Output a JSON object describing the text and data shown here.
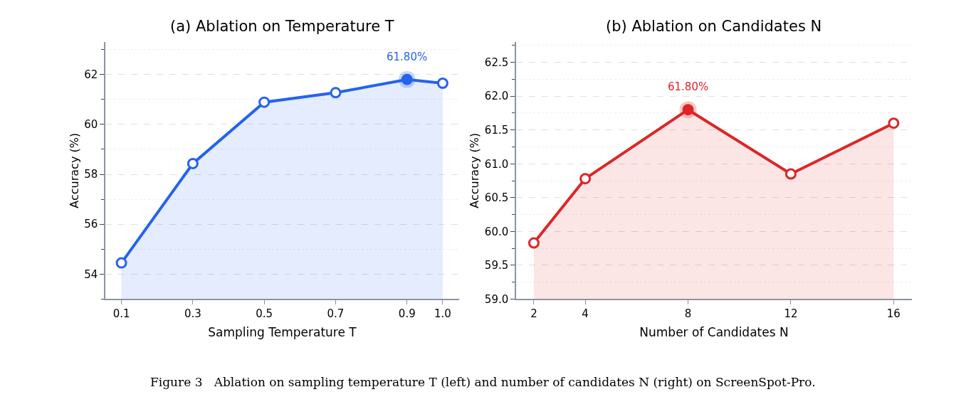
{
  "chart_data": [
    {
      "type": "area",
      "title": "(a) Ablation on Temperature T",
      "xlabel": "Sampling Temperature T",
      "ylabel": "Accuracy (%)",
      "x": [
        0.1,
        0.3,
        0.5,
        0.7,
        0.9,
        1.0
      ],
      "series": [
        {
          "color": "#2563eb",
          "values": [
            54.45,
            58.43,
            60.89,
            61.27,
            61.8,
            61.65
          ]
        }
      ],
      "xlim": [
        0.055,
        1.046
      ],
      "xticks": [
        {
          "value": 0.1,
          "label": "0.1"
        },
        {
          "value": 0.3,
          "label": "0.3"
        },
        {
          "value": 0.5,
          "label": "0.5"
        },
        {
          "value": 0.7,
          "label": "0.7"
        },
        {
          "value": 0.9,
          "label": "0.9"
        },
        {
          "value": 1.0,
          "label": "1.0"
        }
      ],
      "ylim": [
        53,
        63.3
      ],
      "yticks": [
        {
          "value": 53,
          "label": null
        },
        54,
        {
          "value": 55,
          "label": null
        },
        56,
        {
          "value": 57,
          "label": null
        },
        58,
        {
          "value": 59,
          "label": null
        },
        60,
        {
          "value": 61,
          "label": null
        },
        62,
        {
          "value": 63,
          "label": null
        }
      ],
      "grid": "y",
      "marker": "circle",
      "line_style": "solid",
      "annotations": [
        {
          "text": "61.80%",
          "x": 0.9,
          "y": 61.8
        },
        "Figure 3   Ablation on sampling temperature T (left) and number of candidates N (right) on ScreenSpot-Pro."
      ]
    },
    {
      "type": "area",
      "title": "(b) Ablation on Candidates N",
      "xlabel": "Number of Candidates N",
      "ylabel": "Accuracy (%)",
      "x": [
        2,
        4,
        8,
        12,
        16
      ],
      "series": [
        {
          "color": "#dc2626",
          "values": [
            59.83,
            60.78,
            61.8,
            60.85,
            61.6
          ]
        }
      ],
      "xlim": [
        1.31,
        16.71
      ],
      "xticks": [
        2,
        4,
        8,
        12,
        16
      ],
      "ylim": [
        59.0,
        62.8
      ],
      "yticks": [
        {
          "value": 59.0,
          "label": "59.0"
        },
        {
          "value": 59.25,
          "label": null
        },
        {
          "value": 59.5,
          "label": "59.5"
        },
        {
          "value": 59.75,
          "label": null
        },
        {
          "value": 60.0,
          "label": "60.0"
        },
        {
          "value": 60.25,
          "label": null
        },
        {
          "value": 60.5,
          "label": "60.5"
        },
        {
          "value": 60.75,
          "label": null
        },
        {
          "value": 61.0,
          "label": "61.0"
        },
        {
          "value": 61.25,
          "label": null
        },
        {
          "value": 61.5,
          "label": "61.5"
        },
        {
          "value": 61.75,
          "label": null
        },
        {
          "value": 62.0,
          "label": "62.0"
        },
        {
          "value": 62.25,
          "label": null
        },
        {
          "value": 62.5,
          "label": "62.5"
        },
        {
          "value": 62.75,
          "label": null
        }
      ],
      "grid": "y",
      "marker": "circle",
      "line_style": "solid",
      "annotations": [
        {
          "text": "61.80%",
          "x": 8,
          "y": 61.8
        }
      ]
    }
  ]
}
